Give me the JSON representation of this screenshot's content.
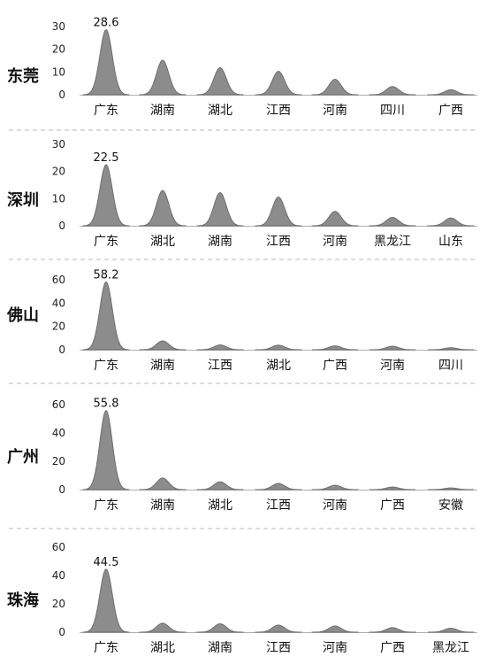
{
  "chart_data": [
    {
      "type": "area",
      "city": "东莞",
      "categories": [
        "广东",
        "湖南",
        "湖北",
        "江西",
        "河南",
        "四川",
        "广西"
      ],
      "values": [
        28.6,
        15.2,
        11.9,
        10.3,
        6.8,
        3.6,
        2.2
      ],
      "yticks": [
        0,
        10,
        20,
        30
      ],
      "ylim": [
        0,
        30
      ],
      "annotation": "28.6"
    },
    {
      "type": "area",
      "city": "深圳",
      "categories": [
        "广东",
        "湖北",
        "湖南",
        "江西",
        "河南",
        "黑龙江",
        "山东"
      ],
      "values": [
        22.5,
        13.0,
        12.2,
        10.6,
        5.3,
        3.1,
        2.9
      ],
      "yticks": [
        0,
        10,
        20,
        30
      ],
      "ylim": [
        0,
        30
      ],
      "annotation": "22.5"
    },
    {
      "type": "area",
      "city": "佛山",
      "categories": [
        "广东",
        "湖南",
        "江西",
        "湖北",
        "广西",
        "河南",
        "四川"
      ],
      "values": [
        58.2,
        7.6,
        4.1,
        3.9,
        3.3,
        3.0,
        1.7
      ],
      "yticks": [
        0,
        20,
        40,
        60
      ],
      "ylim": [
        0,
        60
      ],
      "annotation": "58.2"
    },
    {
      "type": "area",
      "city": "广州",
      "categories": [
        "广东",
        "湖南",
        "湖北",
        "江西",
        "河南",
        "广西",
        "安徽"
      ],
      "values": [
        55.8,
        8.2,
        5.5,
        4.4,
        3.1,
        1.8,
        1.2
      ],
      "yticks": [
        0,
        20,
        40,
        60
      ],
      "ylim": [
        0,
        60
      ],
      "annotation": "55.8"
    },
    {
      "type": "area",
      "city": "珠海",
      "categories": [
        "广东",
        "湖北",
        "湖南",
        "江西",
        "河南",
        "广西",
        "黑龙江"
      ],
      "values": [
        44.5,
        6.3,
        5.9,
        5.0,
        4.4,
        3.2,
        2.8
      ],
      "yticks": [
        0,
        20,
        40,
        60
      ],
      "ylim": [
        0,
        60
      ],
      "annotation": "44.5"
    }
  ]
}
